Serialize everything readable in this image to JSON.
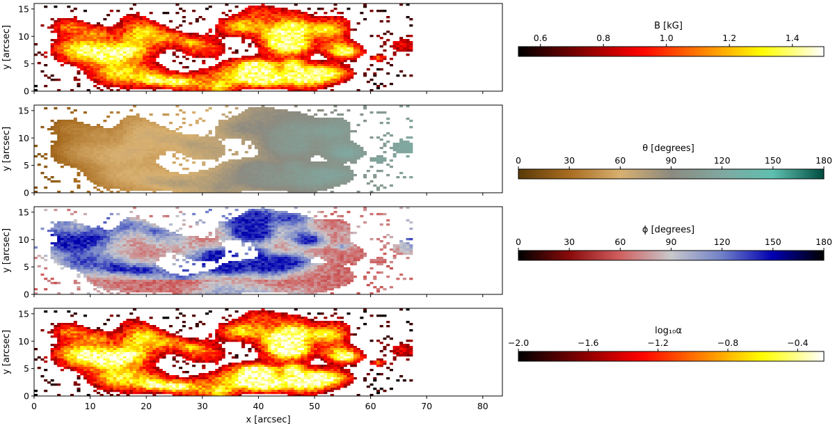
{
  "chart_data": [
    {
      "type": "heatmap",
      "panel": "B",
      "colorbar_label": "B [kG]",
      "colorbar_ticks": [
        "0.6",
        "0.8",
        "1.0",
        "1.2",
        "1.4"
      ],
      "colorbar_tick_values": [
        0.6,
        0.8,
        1.0,
        1.2,
        1.4
      ],
      "colorbar_range": [
        0.53,
        1.5
      ],
      "colormap": "afmhot",
      "ylabel": "y [arcsec]",
      "xlim": [
        0,
        83.5
      ],
      "ylim": [
        0,
        16
      ],
      "yticks": [
        "0",
        "5",
        "10",
        "15"
      ],
      "ytick_values": [
        0,
        5,
        10,
        15
      ],
      "show_xticklabels": false
    },
    {
      "type": "heatmap",
      "panel": "theta",
      "colorbar_label": "θ [degrees]",
      "colorbar_ticks": [
        "0",
        "30",
        "60",
        "90",
        "120",
        "150",
        "180"
      ],
      "colorbar_tick_values": [
        0,
        30,
        60,
        90,
        120,
        150,
        180
      ],
      "colorbar_range": [
        0,
        180
      ],
      "colormap": "brown-grey-teal",
      "ylabel": "y [arcsec]",
      "xlim": [
        0,
        83.5
      ],
      "ylim": [
        0,
        16
      ],
      "yticks": [
        "0",
        "5",
        "10",
        "15"
      ],
      "ytick_values": [
        0,
        5,
        10,
        15
      ],
      "show_xticklabels": false
    },
    {
      "type": "heatmap",
      "panel": "phi",
      "colorbar_label": "ϕ [degrees]",
      "colorbar_ticks": [
        "0",
        "30",
        "60",
        "90",
        "120",
        "150",
        "180"
      ],
      "colorbar_tick_values": [
        0,
        30,
        60,
        90,
        120,
        150,
        180
      ],
      "colorbar_range": [
        0,
        180
      ],
      "colormap": "black-red-grey-blue-black",
      "ylabel": "y [arcsec]",
      "xlim": [
        0,
        83.5
      ],
      "ylim": [
        0,
        16
      ],
      "yticks": [
        "0",
        "5",
        "10",
        "15"
      ],
      "ytick_values": [
        0,
        5,
        10,
        15
      ],
      "show_xticklabels": false
    },
    {
      "type": "heatmap",
      "panel": "alpha",
      "colorbar_label": "log₁₀α",
      "colorbar_ticks": [
        "−2.0",
        "−1.6",
        "−1.2",
        "−0.8",
        "−0.4"
      ],
      "colorbar_tick_values": [
        -2.0,
        -1.6,
        -1.2,
        -0.8,
        -0.4
      ],
      "colorbar_range": [
        -2.0,
        -0.25
      ],
      "colormap": "afmhot",
      "ylabel": "y [arcsec]",
      "xlabel": "x [arcsec]",
      "xlim": [
        0,
        83.5
      ],
      "ylim": [
        0,
        16
      ],
      "xticks": [
        "0",
        "10",
        "20",
        "30",
        "40",
        "50",
        "60",
        "70",
        "80"
      ],
      "xtick_values": [
        0,
        10,
        20,
        30,
        40,
        50,
        60,
        70,
        80
      ],
      "yticks": [
        "0",
        "5",
        "10",
        "15"
      ],
      "ytick_values": [
        0,
        5,
        10,
        15
      ],
      "show_xticklabels": true
    }
  ],
  "map_extent_x": [
    0,
    67.5
  ],
  "colors": {
    "afmhot": [
      "#000000",
      "#800000",
      "#ff0000",
      "#ff8000",
      "#ffff00",
      "#ffffff"
    ],
    "brown-grey-teal": [
      "#5a3a06",
      "#a86c20",
      "#d8b070",
      "#8c8a80",
      "#80a8a0",
      "#5ec0b0",
      "#004d40"
    ],
    "black-red-grey-blue-black": [
      "#000000",
      "#8a0a0a",
      "#d06060",
      "#c8c8cc",
      "#7080c8",
      "#0000b0",
      "#000000"
    ]
  }
}
